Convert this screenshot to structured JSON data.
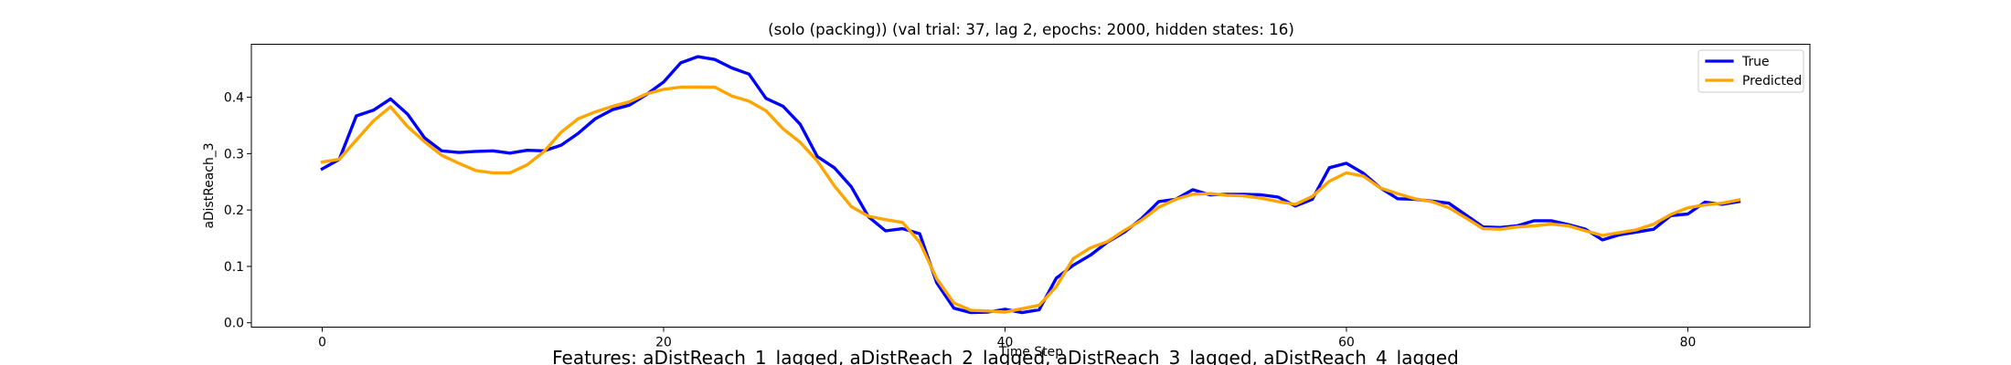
{
  "chart_data": {
    "type": "line",
    "title": "(solo (packing)) (val trial: 37, lag 2, epochs: 2000, hidden states: 16)",
    "xlabel": "Time Step",
    "ylabel": "aDistReach_3",
    "footer": "Features: aDistReach_1_lagged, aDistReach_2_lagged, aDistReach_3_lagged, aDistReach_4_lagged",
    "xlim": [
      -4.15,
      87.15
    ],
    "ylim": [
      -0.0077,
      0.494
    ],
    "xticks": [
      0,
      20,
      40,
      60,
      80
    ],
    "xtick_labels": [
      "0",
      "20",
      "40",
      "60",
      "80"
    ],
    "yticks": [
      0.0,
      0.1,
      0.2,
      0.3,
      0.4
    ],
    "ytick_labels": [
      "0.0",
      "0.1",
      "0.2",
      "0.3",
      "0.4"
    ],
    "grid": false,
    "legend_position": "top-right",
    "series": [
      {
        "name": "True",
        "color": "#0000ff",
        "x": [
          0,
          1,
          2,
          3,
          4,
          5,
          6,
          7,
          8,
          9,
          10,
          11,
          12,
          13,
          14,
          15,
          16,
          17,
          18,
          19,
          20,
          21,
          22,
          23,
          24,
          25,
          26,
          27,
          28,
          29,
          30,
          31,
          32,
          33,
          34,
          35,
          36,
          37,
          38,
          39,
          40,
          41,
          42,
          43,
          44,
          45,
          46,
          47,
          48,
          49,
          50,
          51,
          52,
          53,
          54,
          55,
          56,
          57,
          58,
          59,
          60,
          61,
          62,
          63,
          64,
          65,
          66,
          67,
          68,
          69,
          70,
          71,
          72,
          73,
          74,
          75,
          76,
          77,
          78,
          79,
          80,
          81,
          82,
          83
        ],
        "values": [
          0.273,
          0.29,
          0.367,
          0.377,
          0.397,
          0.37,
          0.328,
          0.305,
          0.302,
          0.304,
          0.305,
          0.301,
          0.306,
          0.305,
          0.315,
          0.336,
          0.362,
          0.378,
          0.386,
          0.405,
          0.427,
          0.461,
          0.472,
          0.467,
          0.452,
          0.441,
          0.398,
          0.384,
          0.352,
          0.295,
          0.275,
          0.241,
          0.188,
          0.163,
          0.167,
          0.158,
          0.071,
          0.026,
          0.018,
          0.019,
          0.024,
          0.018,
          0.023,
          0.079,
          0.102,
          0.12,
          0.143,
          0.161,
          0.185,
          0.215,
          0.219,
          0.236,
          0.227,
          0.228,
          0.228,
          0.227,
          0.223,
          0.207,
          0.219,
          0.275,
          0.283,
          0.265,
          0.239,
          0.22,
          0.219,
          0.216,
          0.212,
          0.191,
          0.17,
          0.169,
          0.172,
          0.181,
          0.181,
          0.174,
          0.166,
          0.147,
          0.156,
          0.161,
          0.166,
          0.19,
          0.193,
          0.214,
          0.21,
          0.215
        ]
      },
      {
        "name": "Predicted",
        "color": "#ffa500",
        "x": [
          0,
          1,
          2,
          3,
          4,
          5,
          6,
          7,
          8,
          9,
          10,
          11,
          12,
          13,
          14,
          15,
          16,
          17,
          18,
          19,
          20,
          21,
          22,
          23,
          24,
          25,
          26,
          27,
          28,
          29,
          30,
          31,
          32,
          33,
          34,
          35,
          36,
          37,
          38,
          39,
          40,
          41,
          42,
          43,
          44,
          45,
          46,
          47,
          48,
          49,
          50,
          51,
          52,
          53,
          54,
          55,
          56,
          57,
          58,
          59,
          60,
          61,
          62,
          63,
          64,
          65,
          66,
          67,
          68,
          69,
          70,
          71,
          72,
          73,
          74,
          75,
          76,
          77,
          78,
          79,
          80,
          81,
          82,
          83
        ],
        "values": [
          0.285,
          0.29,
          0.324,
          0.358,
          0.383,
          0.348,
          0.321,
          0.297,
          0.283,
          0.27,
          0.266,
          0.266,
          0.28,
          0.304,
          0.338,
          0.362,
          0.374,
          0.384,
          0.392,
          0.406,
          0.414,
          0.418,
          0.418,
          0.418,
          0.402,
          0.393,
          0.376,
          0.344,
          0.32,
          0.287,
          0.243,
          0.206,
          0.189,
          0.183,
          0.178,
          0.143,
          0.078,
          0.035,
          0.022,
          0.021,
          0.019,
          0.025,
          0.031,
          0.064,
          0.114,
          0.133,
          0.144,
          0.164,
          0.182,
          0.205,
          0.219,
          0.228,
          0.229,
          0.226,
          0.225,
          0.221,
          0.215,
          0.21,
          0.224,
          0.251,
          0.266,
          0.26,
          0.239,
          0.229,
          0.22,
          0.215,
          0.204,
          0.186,
          0.167,
          0.166,
          0.17,
          0.172,
          0.175,
          0.172,
          0.163,
          0.155,
          0.16,
          0.165,
          0.175,
          0.192,
          0.204,
          0.209,
          0.212,
          0.218
        ]
      }
    ]
  }
}
